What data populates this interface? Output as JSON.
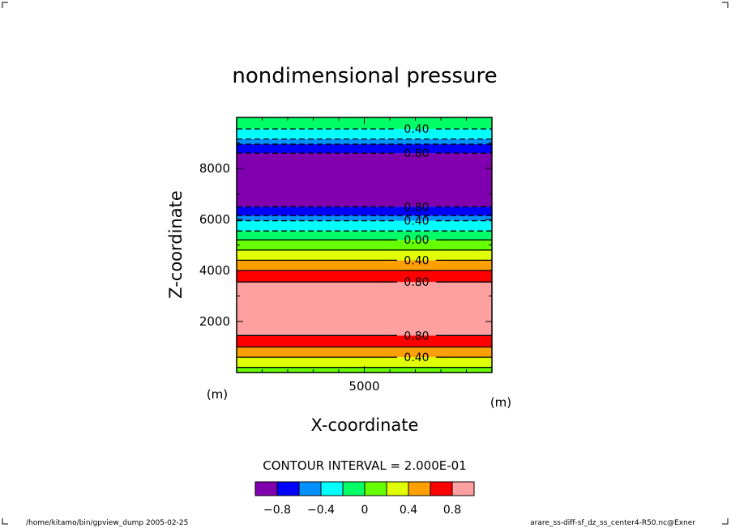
{
  "chart_data": {
    "type": "heatmap",
    "title": "nondimensional pressure",
    "xlabel": "X-coordinate",
    "ylabel": "Z-coordinate",
    "xunit": "(m)",
    "yunit": "(m)",
    "xlim": [
      0,
      10000
    ],
    "ylim": [
      0,
      10000
    ],
    "x_ticks": [
      5000
    ],
    "y_ticks": [
      2000,
      4000,
      6000,
      8000
    ],
    "bands": [
      {
        "z0": 0,
        "z1": 200,
        "color": "#66ff00"
      },
      {
        "z0": 200,
        "z1": 600,
        "color": "#e0ff00"
      },
      {
        "z0": 600,
        "z1": 1000,
        "color": "#ffa000"
      },
      {
        "z0": 1000,
        "z1": 1450,
        "color": "#ff0000"
      },
      {
        "z0": 1450,
        "z1": 3550,
        "color": "#ffa0a0"
      },
      {
        "z0": 3550,
        "z1": 4000,
        "color": "#ff0000"
      },
      {
        "z0": 4000,
        "z1": 4400,
        "color": "#ffa000"
      },
      {
        "z0": 4400,
        "z1": 4800,
        "color": "#e0ff00"
      },
      {
        "z0": 4800,
        "z1": 5200,
        "color": "#66ff00"
      },
      {
        "z0": 5200,
        "z1": 5550,
        "color": "#00ff66"
      },
      {
        "z0": 5550,
        "z1": 5950,
        "color": "#00ffff"
      },
      {
        "z0": 5950,
        "z1": 6150,
        "color": "#0090ff"
      },
      {
        "z0": 6150,
        "z1": 6500,
        "color": "#0000ff"
      },
      {
        "z0": 6500,
        "z1": 8600,
        "color": "#8000b0"
      },
      {
        "z0": 8600,
        "z1": 8950,
        "color": "#0000ff"
      },
      {
        "z0": 8950,
        "z1": 9150,
        "color": "#0090ff"
      },
      {
        "z0": 9150,
        "z1": 9550,
        "color": "#00ffff"
      },
      {
        "z0": 9550,
        "z1": 10000,
        "color": "#00ff66"
      }
    ],
    "contours": [
      {
        "z": 200,
        "dashed": false,
        "label": ""
      },
      {
        "z": 600,
        "dashed": false,
        "label": "0.40"
      },
      {
        "z": 1000,
        "dashed": false,
        "label": ""
      },
      {
        "z": 1450,
        "dashed": false,
        "label": "0.80"
      },
      {
        "z": 3550,
        "dashed": false,
        "label": "0.80"
      },
      {
        "z": 4000,
        "dashed": false,
        "label": ""
      },
      {
        "z": 4400,
        "dashed": false,
        "label": "0.40"
      },
      {
        "z": 4800,
        "dashed": false,
        "label": ""
      },
      {
        "z": 5200,
        "dashed": false,
        "label": "0.00"
      },
      {
        "z": 5550,
        "dashed": true,
        "label": ""
      },
      {
        "z": 5950,
        "dashed": true,
        "label": "0.40"
      },
      {
        "z": 6150,
        "dashed": true,
        "label": ""
      },
      {
        "z": 6500,
        "dashed": true,
        "label": "0.80"
      },
      {
        "z": 8600,
        "dashed": true,
        "label": "0.80"
      },
      {
        "z": 8950,
        "dashed": true,
        "label": ""
      },
      {
        "z": 9150,
        "dashed": true,
        "label": ""
      },
      {
        "z": 9550,
        "dashed": true,
        "label": "0.40"
      }
    ],
    "contour_interval_text": "CONTOUR INTERVAL = 2.000E-01",
    "colorbar": {
      "colors": [
        "#8000b0",
        "#0000ff",
        "#0090ff",
        "#00ffff",
        "#00ff66",
        "#66ff00",
        "#e0ff00",
        "#ffa000",
        "#ff0000",
        "#ffa0a0"
      ],
      "labels": [
        "−0.8",
        "−0.4",
        "0",
        "0.4",
        "0.8"
      ]
    }
  },
  "footer": {
    "left": "/home/kitamo/bin/gpview_dump  2005-02-25",
    "right": "arare_ss-diff-sf_dz_ss_center4-R50.nc@Exner"
  }
}
